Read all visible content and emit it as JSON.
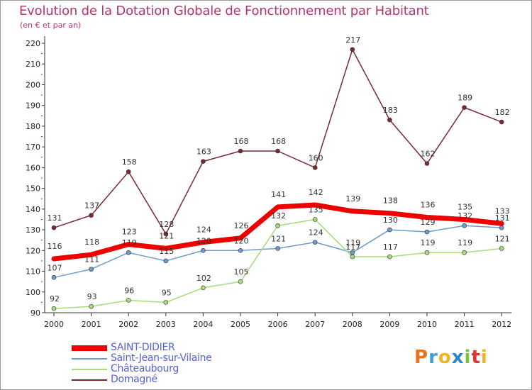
{
  "header": {
    "title": "Evolution de la Dotation Globale de Fonctionnement par Habitant",
    "subtitle": "(en € et par an)"
  },
  "brand": {
    "letters": [
      "P",
      "r",
      "o",
      "x",
      "i",
      "t",
      "i"
    ],
    "colors": [
      "#e8731e",
      "#3aa0d8",
      "#f0b323",
      "#2d86c9",
      "#7cc242",
      "#e0322f",
      "#f0b323"
    ]
  },
  "chart_data": {
    "type": "line",
    "title": "Evolution de la Dotation Globale de Fonctionnement par Habitant",
    "subtitle": "(en € et par an)",
    "xlabel": "",
    "ylabel": "",
    "x": [
      "2000",
      "2001",
      "2002",
      "2003",
      "2004",
      "2005",
      "2006",
      "2007",
      "2008",
      "2009",
      "2010",
      "2011",
      "2012"
    ],
    "ylim": [
      90,
      220
    ],
    "yticks": [
      90,
      100,
      110,
      120,
      130,
      140,
      150,
      160,
      170,
      180,
      190,
      200,
      210,
      220
    ],
    "grid": false,
    "legend": "bottom-left",
    "series": [
      {
        "name": "SAINT-DIDIER",
        "color": "#ee0000",
        "values": [
          116,
          118,
          123,
          121,
          124,
          126,
          141,
          142,
          139,
          138,
          136,
          135,
          133
        ]
      },
      {
        "name": "Saint-Jean-sur-Vilaine",
        "color": "#6c9ccc",
        "values": [
          107,
          111,
          119,
          115,
          120,
          120,
          121,
          124,
          119,
          130,
          129,
          132,
          131
        ]
      },
      {
        "name": "Châteaubourg",
        "color": "#a6dc7c",
        "values": [
          92,
          93,
          96,
          95,
          102,
          105,
          132,
          135,
          117,
          117,
          119,
          119,
          121
        ]
      },
      {
        "name": "Domagné",
        "color": "#7a2a31",
        "values": [
          131,
          137,
          158,
          128,
          163,
          168,
          168,
          160,
          217,
          183,
          162,
          189,
          182
        ]
      }
    ]
  }
}
